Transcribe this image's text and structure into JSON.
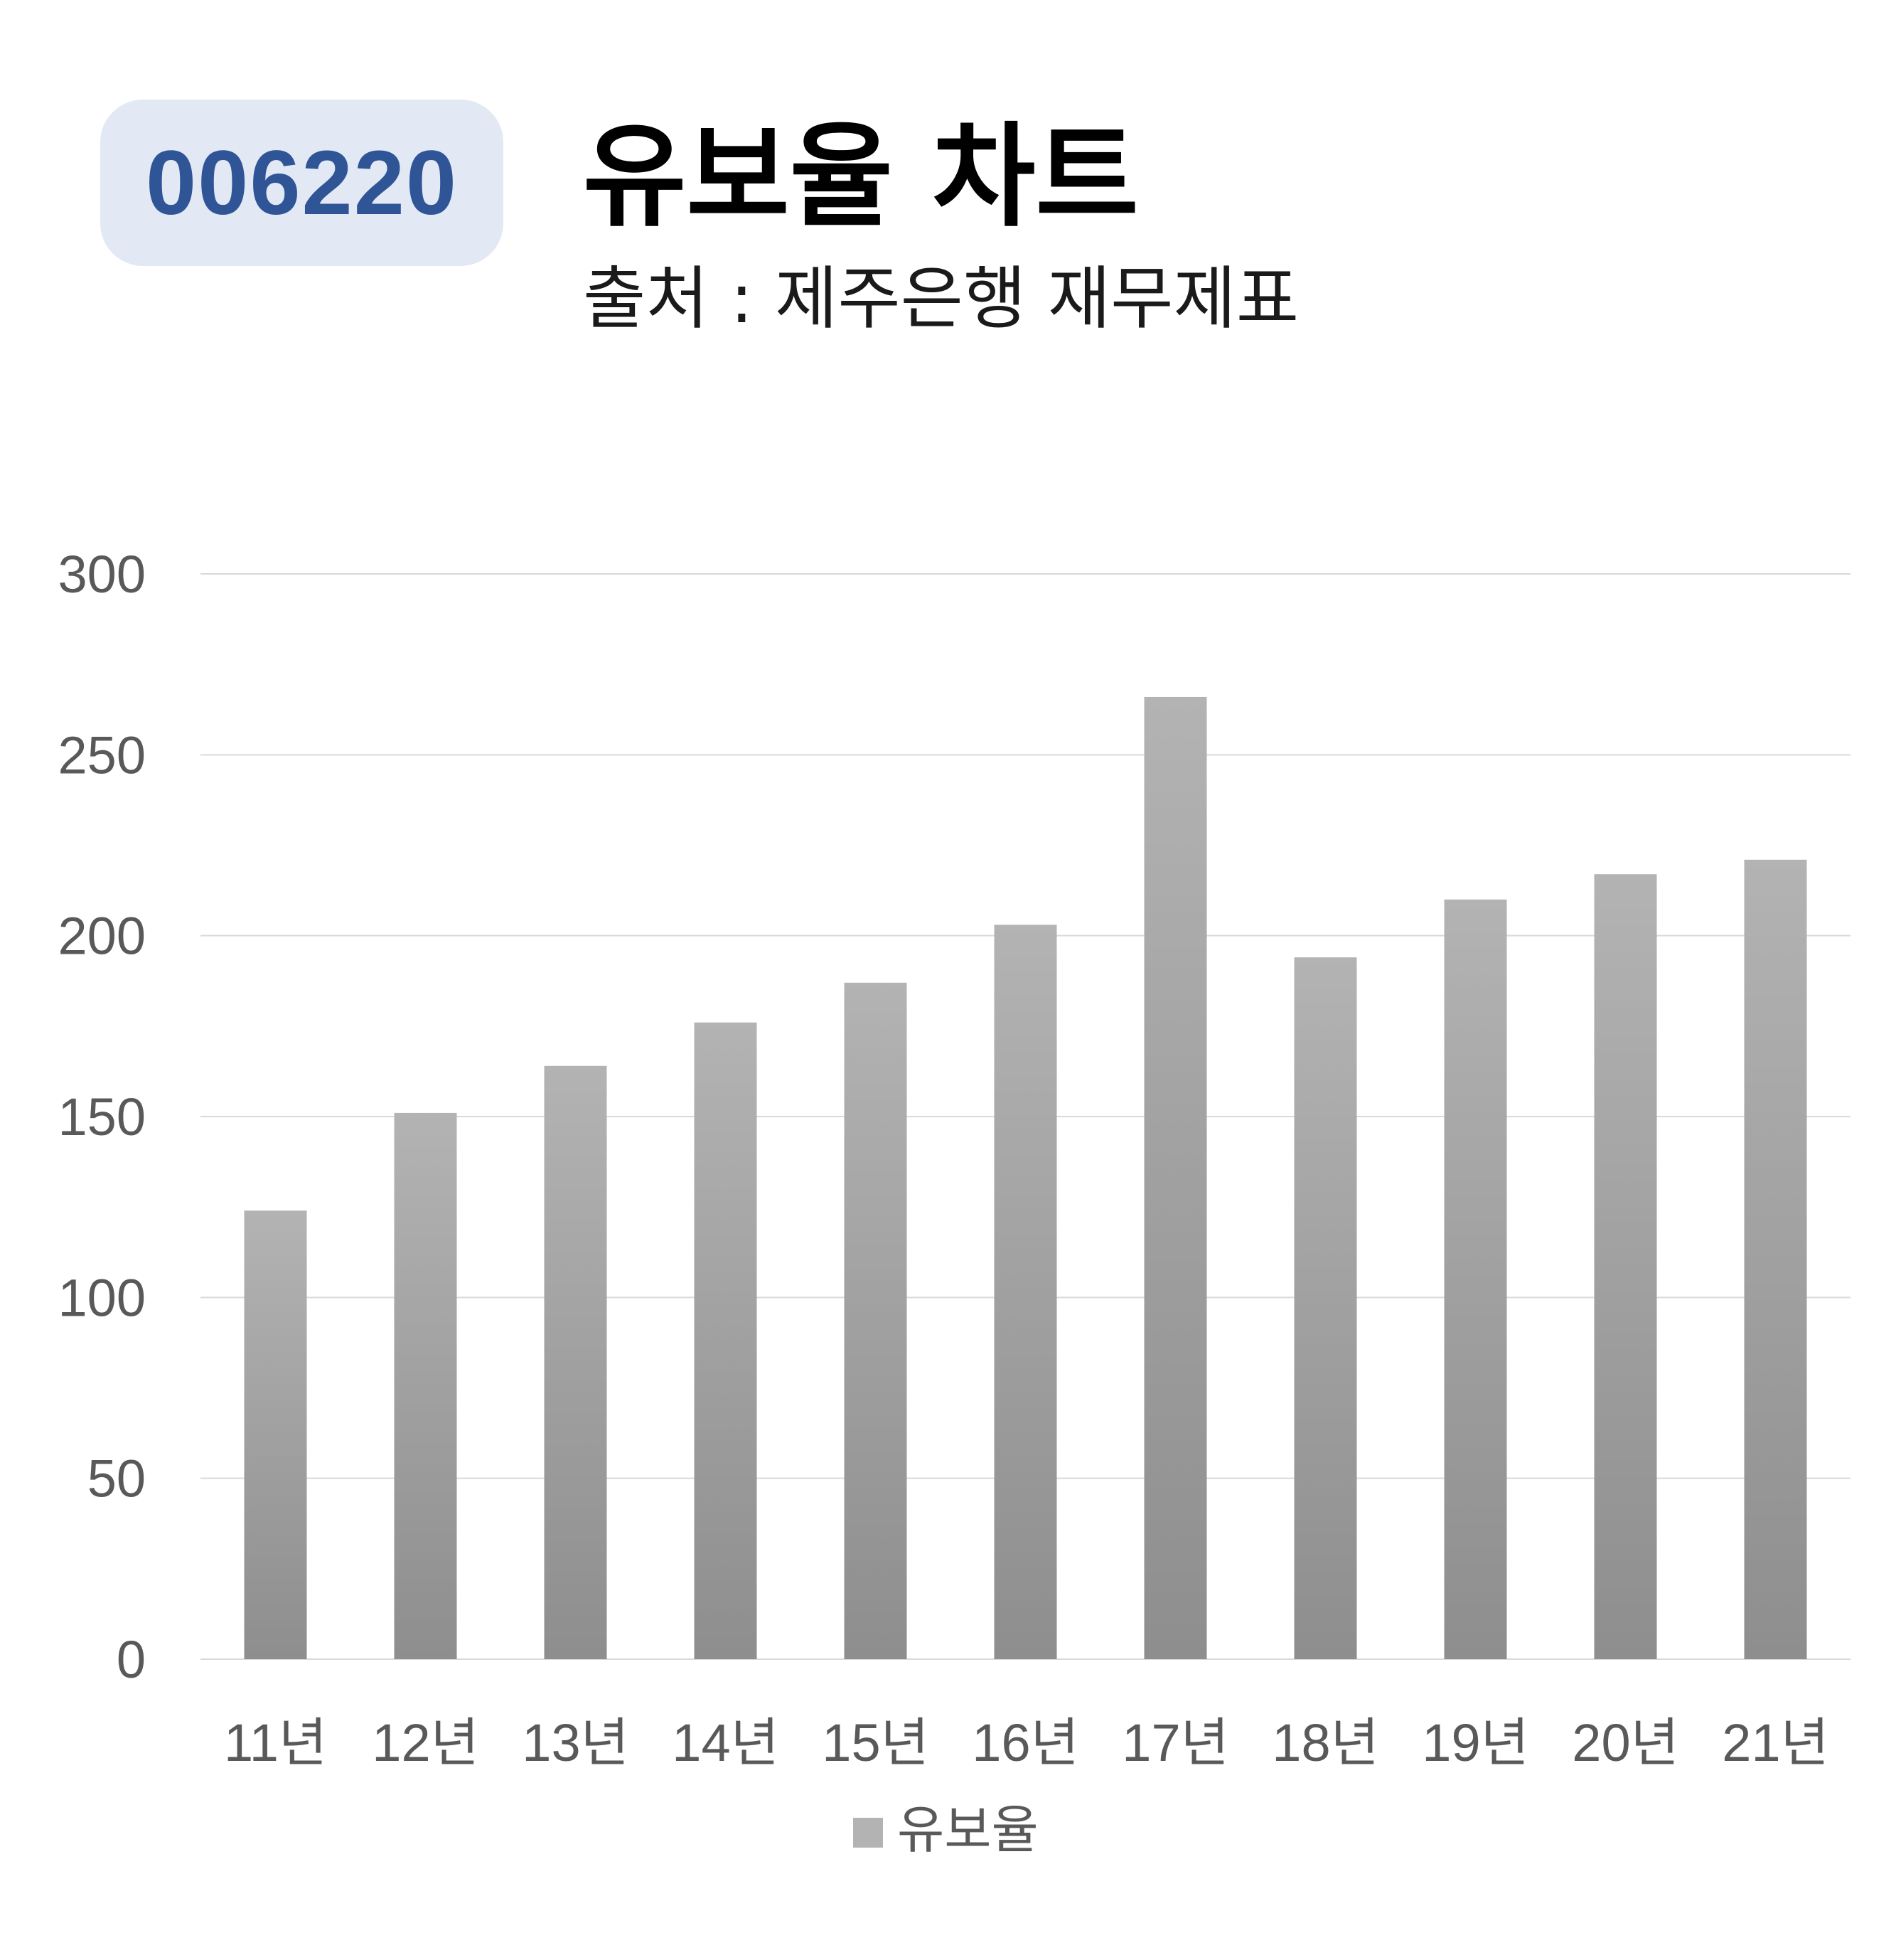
{
  "badge": {
    "code": "006220"
  },
  "header": {
    "title": "유보율 차트",
    "subtitle": "출처 : 제주은행 재무제표"
  },
  "colors": {
    "badge_bg": "#e3e9f4",
    "badge_text": "#2f5597",
    "bar_top": "#b3b3b3",
    "bar_bottom": "#8e8e8e",
    "grid": "#d9d9d9",
    "axis_text": "#595959"
  },
  "chart_data": {
    "type": "bar",
    "title": "유보율 차트",
    "subtitle": "출처 : 제주은행 재무제표",
    "categories": [
      "11년",
      "12년",
      "13년",
      "14년",
      "15년",
      "16년",
      "17년",
      "18년",
      "19년",
      "20년",
      "21년"
    ],
    "series": [
      {
        "name": "유보율",
        "values": [
          124,
          151,
          164,
          176,
          187,
          203,
          266,
          194,
          210,
          217,
          221
        ]
      }
    ],
    "ylim": [
      0,
      300
    ],
    "yticks": [
      0,
      50,
      100,
      150,
      200,
      250,
      300
    ],
    "grid": true,
    "legend": "bottom"
  }
}
